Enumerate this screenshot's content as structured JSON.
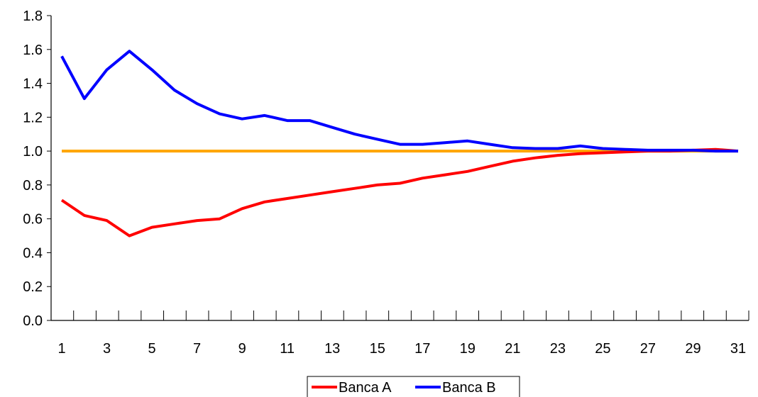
{
  "chart_data": {
    "type": "line",
    "title": "",
    "xlabel": "",
    "ylabel": "",
    "x": [
      1,
      2,
      3,
      4,
      5,
      6,
      7,
      8,
      9,
      10,
      11,
      12,
      13,
      14,
      15,
      16,
      17,
      18,
      19,
      20,
      21,
      22,
      23,
      24,
      25,
      26,
      27,
      28,
      29,
      30,
      31
    ],
    "x_tick_labels": [
      "1",
      "3",
      "5",
      "7",
      "9",
      "11",
      "13",
      "15",
      "17",
      "19",
      "21",
      "23",
      "25",
      "27",
      "29",
      "31"
    ],
    "y_tick_labels": [
      "0.0",
      "0.2",
      "0.4",
      "0.6",
      "0.8",
      "1.0",
      "1.2",
      "1.4",
      "1.6",
      "1.8"
    ],
    "ylim": [
      0,
      1.8
    ],
    "grid": false,
    "legend_position": "bottom",
    "series": [
      {
        "name": "Banca A",
        "color": "#ff0000",
        "values": [
          0.71,
          0.62,
          0.59,
          0.5,
          0.55,
          0.57,
          0.59,
          0.6,
          0.66,
          0.7,
          0.72,
          0.74,
          0.76,
          0.78,
          0.8,
          0.81,
          0.84,
          0.86,
          0.88,
          0.91,
          0.94,
          0.96,
          0.975,
          0.985,
          0.99,
          0.995,
          1.0,
          1.0,
          1.005,
          1.01,
          1.0
        ]
      },
      {
        "name": "Banca B",
        "color": "#0000ff",
        "values": [
          1.56,
          1.31,
          1.48,
          1.59,
          1.48,
          1.36,
          1.28,
          1.22,
          1.19,
          1.21,
          1.18,
          1.18,
          1.14,
          1.1,
          1.07,
          1.04,
          1.04,
          1.05,
          1.06,
          1.04,
          1.02,
          1.015,
          1.015,
          1.03,
          1.015,
          1.01,
          1.005,
          1.005,
          1.005,
          1.0,
          1.0
        ]
      }
    ],
    "reference_line": {
      "value": 1.0,
      "color": "#ffa500"
    }
  }
}
